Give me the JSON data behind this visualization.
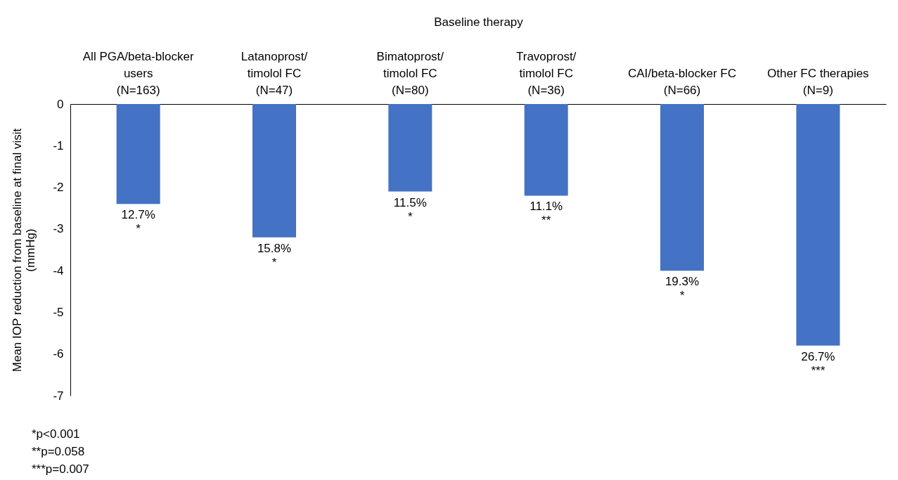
{
  "chart_data": {
    "type": "bar",
    "xlabel": "Baseline therapy",
    "ylabel": "Mean IOP reduction from baseline at final visit\n(mmHg)",
    "categories": [
      "All PGA/beta-blocker\nusers\n(N=163)",
      "Latanoprost/\ntimolol FC\n(N=47)",
      "Bimatoprost/\ntimolol FC\n(N=80)",
      "Travoprost/\ntimolol FC\n(N=36)",
      "CAI/beta-blocker FC\n(N=66)",
      "Other FC therapies\n(N=9)"
    ],
    "values": [
      -2.4,
      -3.2,
      -2.1,
      -2.2,
      -4.0,
      -5.8
    ],
    "color": "#4472c4",
    "ylim": [
      -7,
      0
    ],
    "yticks": [
      -7,
      -6,
      -5,
      -4,
      -3,
      -2,
      -1,
      0
    ],
    "grid": false,
    "annotations": [
      {
        "text": "12.7%\n*",
        "x": "All PGA/beta-blocker\nusers\n(N=163)",
        "y": -2.4
      },
      {
        "text": "15.8%\n*",
        "x": "Latanoprost/\ntimolol FC\n(N=47)",
        "y": -3.2
      },
      {
        "text": "11.5%\n*",
        "x": "Bimatoprost/\ntimolol FC\n(N=80)",
        "y": -2.1
      },
      {
        "text": "11.1%\n**",
        "x": "Travoprost/\ntimolol FC\n(N=36)",
        "y": -2.2
      },
      {
        "text": "19.3%\n*",
        "x": "CAI/beta-blocker FC\n(N=66)",
        "y": -4.0
      },
      {
        "text": "26.7%\n***",
        "x": "Other FC therapies\n(N=9)",
        "y": -5.8
      },
      "*p<0.001",
      "**p=0.058",
      "***p=0.007"
    ]
  }
}
